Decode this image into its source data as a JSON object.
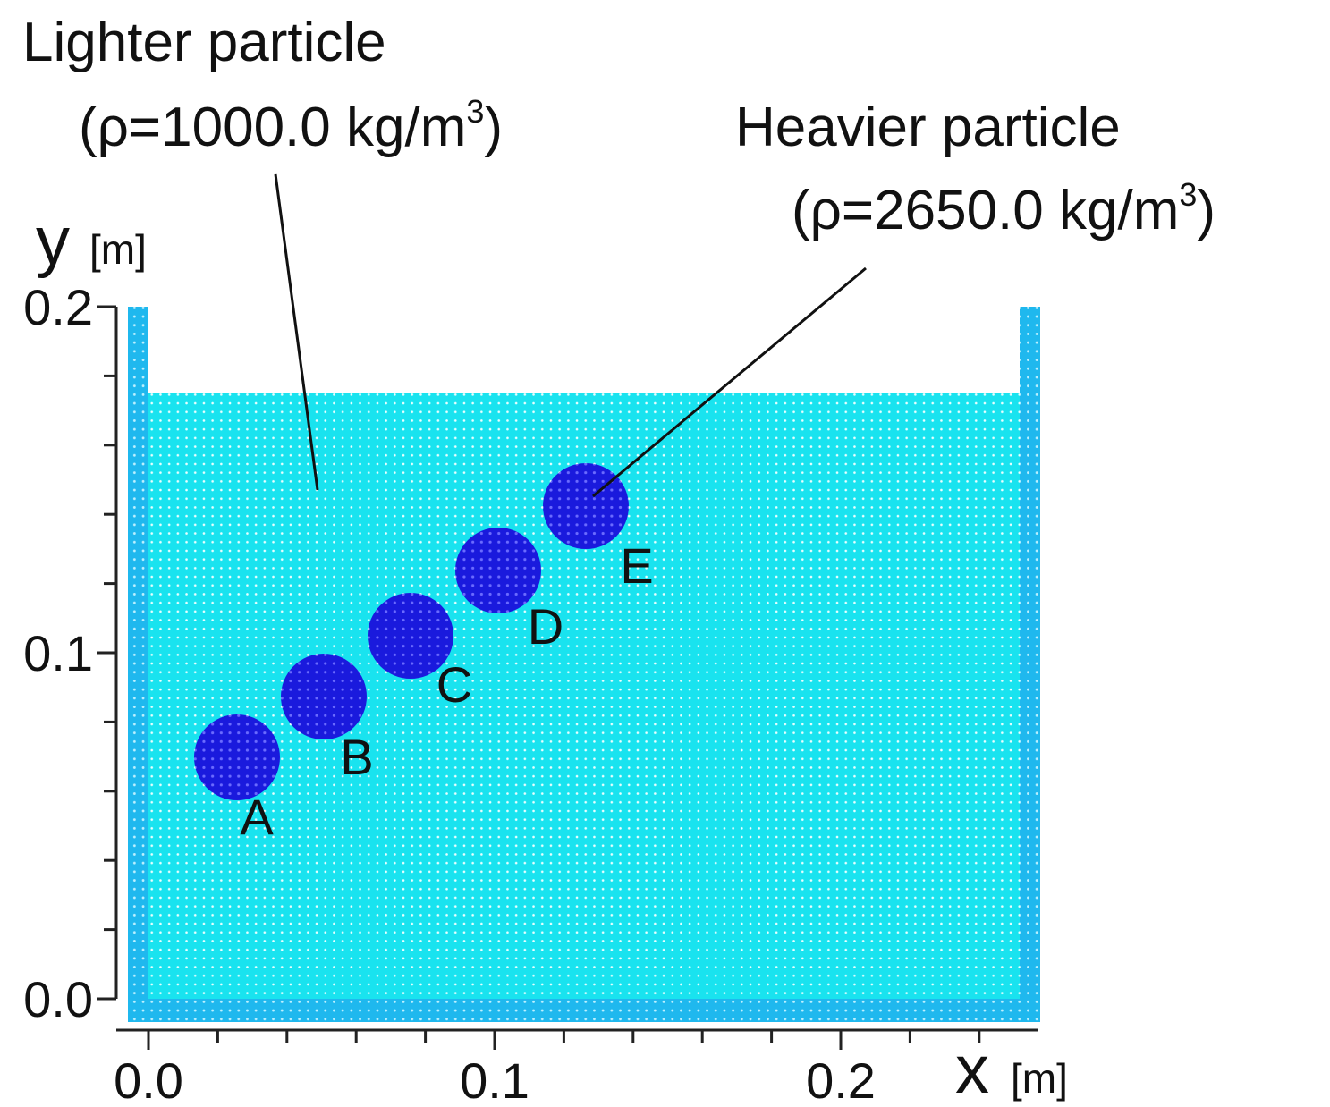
{
  "annotations": [
    {
      "title": "Lighter particle",
      "density": {
        "text": "(ρ=1000.0 kg/m",
        "superscript": "3",
        "close": ")"
      }
    },
    {
      "title": "Heavier particle",
      "density": {
        "text": "(ρ=2650.0 kg/m",
        "superscript": "3",
        "close": ")"
      }
    }
  ],
  "axes": {
    "y": {
      "label": "y",
      "unit": "[m]",
      "ticks": [
        "0.2",
        "0.1",
        "0.0"
      ]
    },
    "x": {
      "label": "x",
      "unit": "[m]",
      "ticks": [
        "0.0",
        "0.1",
        "0.2"
      ]
    }
  },
  "particles": {
    "labels": [
      "A",
      "B",
      "C",
      "D",
      "E"
    ]
  }
}
